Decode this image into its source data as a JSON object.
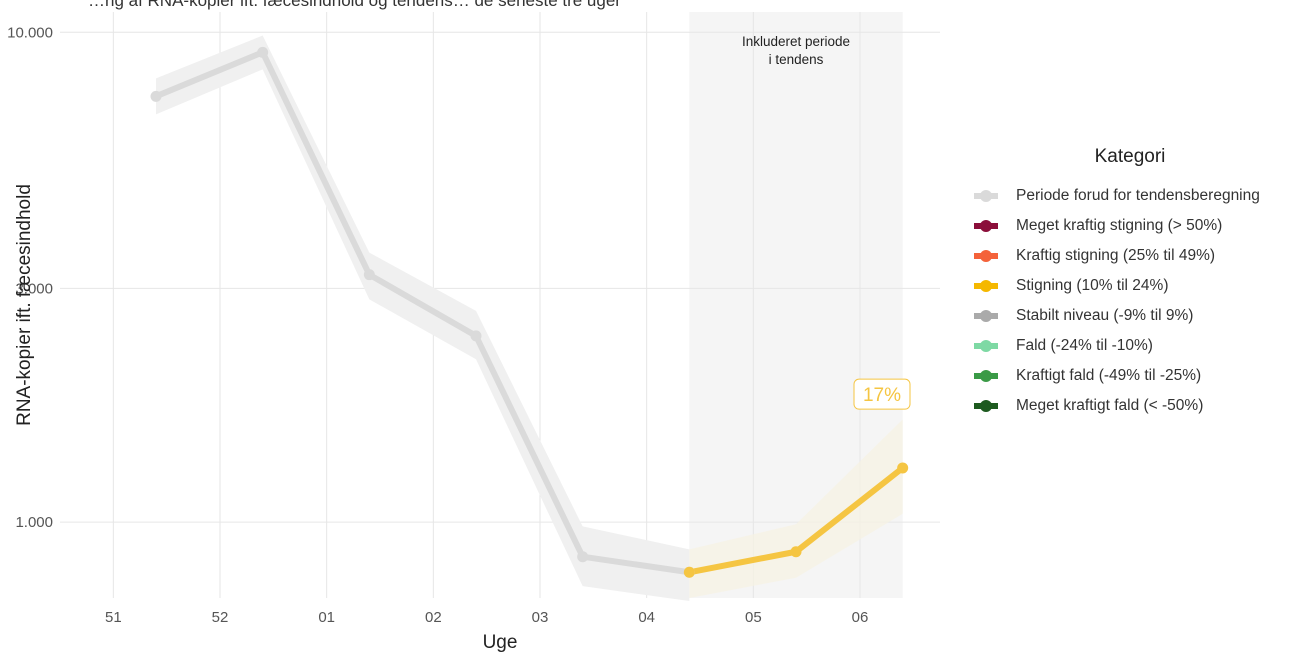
{
  "header": {
    "cut_title": "…ng af RNA-kopier ift. fæcesindhold og tendens… de seneste tre uger"
  },
  "colors": {
    "history": "#dadada",
    "history_band": "#f0f0f0",
    "trend": "#f5c542",
    "highlight_bg": "#f5f5f5",
    "grid": "#e6e6e6",
    "axis_text": "#555555"
  },
  "chart_data": {
    "type": "line",
    "xlabel": "Uge",
    "ylabel": "RNA-kopier ift. fæcesindhold",
    "y_scale": "log",
    "ylim": [
      700,
      11000
    ],
    "xlim": [
      -0.5,
      7.75
    ],
    "x_ticks": [
      {
        "pos": 0,
        "label": "51"
      },
      {
        "pos": 1,
        "label": "52"
      },
      {
        "pos": 2,
        "label": "01"
      },
      {
        "pos": 3,
        "label": "02"
      },
      {
        "pos": 4,
        "label": "03"
      },
      {
        "pos": 5,
        "label": "04"
      },
      {
        "pos": 6,
        "label": "05"
      },
      {
        "pos": 7,
        "label": "06"
      }
    ],
    "y_ticks": [
      {
        "value": 1000,
        "label": "1.000"
      },
      {
        "value": 3000,
        "label": "3.000"
      },
      {
        "value": 10000,
        "label": "10.000"
      }
    ],
    "grid": true,
    "highlight": {
      "x_start": 5.4,
      "x_end": 7.4,
      "label_line1": "Inkluderet periode",
      "label_line2": "i tendens"
    },
    "series": [
      {
        "name": "Periode forud for tendensberegning",
        "points": [
          {
            "x": 0.4,
            "y": 7400
          },
          {
            "x": 1.4,
            "y": 9100
          },
          {
            "x": 2.4,
            "y": 3200
          },
          {
            "x": 3.4,
            "y": 2400
          },
          {
            "x": 4.4,
            "y": 850
          },
          {
            "x": 5.4,
            "y": 790
          }
        ],
        "band_low": [
          6800,
          8400,
          2850,
          2150,
          740,
          690
        ],
        "band_high": [
          8050,
          9850,
          3550,
          2700,
          980,
          880
        ]
      },
      {
        "name": "Stigning (10% til 24%)",
        "points": [
          {
            "x": 5.4,
            "y": 790
          },
          {
            "x": 6.4,
            "y": 870
          },
          {
            "x": 7.4,
            "y": 1290
          }
        ],
        "band_low": [
          700,
          770,
          1040
        ],
        "band_high": [
          880,
          990,
          1620
        ]
      }
    ],
    "annotation": {
      "text": "17%",
      "x": 7.0,
      "y": 1600
    },
    "legend": {
      "title": "Kategori",
      "position": "right",
      "items": [
        {
          "label": "Periode forud for tendensberegning",
          "color": "#dadada"
        },
        {
          "label": "Meget kraftig stigning (> 50%)",
          "color": "#8b0e3a"
        },
        {
          "label": "Kraftig stigning (25% til 49%)",
          "color": "#f4623a"
        },
        {
          "label": "Stigning (10% til 24%)",
          "color": "#f5b800"
        },
        {
          "label": "Stabilt niveau (-9% til 9%)",
          "color": "#aaaaaa"
        },
        {
          "label": "Fald (-24% til -10%)",
          "color": "#7ed9a4"
        },
        {
          "label": "Kraftigt fald (-49% til -25%)",
          "color": "#3a9a46"
        },
        {
          "label": "Meget kraftigt fald (< -50%)",
          "color": "#1d5a1f"
        }
      ]
    }
  }
}
